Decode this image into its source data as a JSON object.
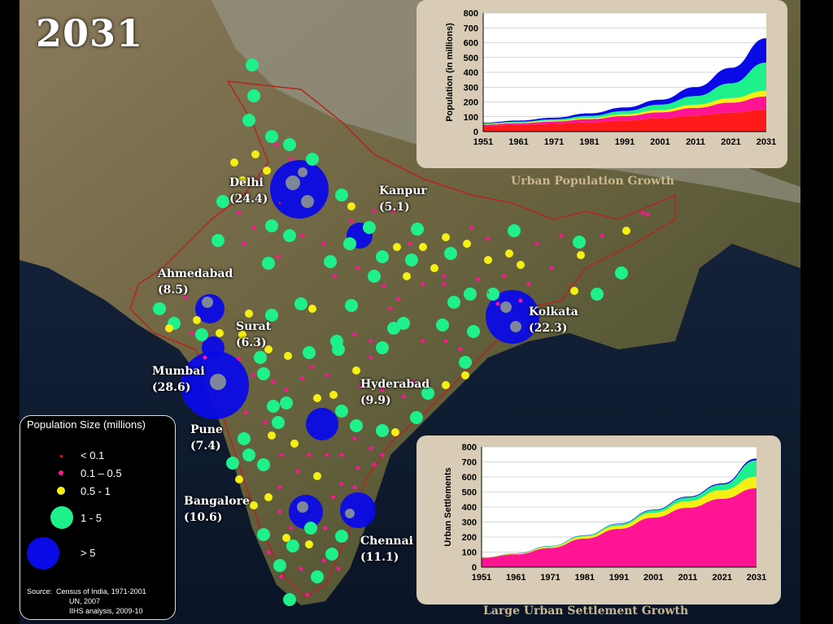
{
  "year": "2031",
  "colors": {
    "blue": "#0a0ae6",
    "green": "#1ef08c",
    "yellow": "#f5f014",
    "pink": "#ff1493",
    "red": "#ff1a1a",
    "border": "#b3261e"
  },
  "cities": [
    {
      "id": "delhi",
      "name": "Delhi",
      "pop": "(24.4)"
    },
    {
      "id": "kanpur",
      "name": "Kanpur",
      "pop": "(5.1)"
    },
    {
      "id": "ahmedabad",
      "name": "Ahmedabad",
      "pop": "(8.5)"
    },
    {
      "id": "surat",
      "name": "Surat",
      "pop": "(6.3)"
    },
    {
      "id": "kolkata",
      "name": "Kolkata",
      "pop": "(22.3)"
    },
    {
      "id": "mumbai",
      "name": "Mumbai",
      "pop": "(28.6)"
    },
    {
      "id": "hyderabad",
      "name": "Hyderabad",
      "pop": "(9.9)"
    },
    {
      "id": "pune",
      "name": "Pune",
      "pop": "(7.4)"
    },
    {
      "id": "bangalore",
      "name": "Bangalore",
      "pop": "(10.6)"
    },
    {
      "id": "chennai",
      "name": "Chennai",
      "pop": "(11.1)"
    }
  ],
  "legend": {
    "title": "Population Size (millions)",
    "items": [
      {
        "label": "< 0.1",
        "color": "#ff1a1a"
      },
      {
        "label": "0.1 – 0.5",
        "color": "#ff1493"
      },
      {
        "label": "0.5 - 1",
        "color": "#f5f014"
      },
      {
        "label": "1 - 5",
        "color": "#1ef08c"
      },
      {
        "label": "> 5",
        "color": "#0a0ae6"
      }
    ],
    "source_label": "Source:",
    "sources": [
      "Census of India, 1971-2001",
      "UN, 2007",
      "IIHS analysis, 2009-10"
    ]
  },
  "chart_data": [
    {
      "type": "area",
      "title": "Urban Population Growth",
      "ylabel": "Population (in millions)",
      "xlabel": "",
      "x": [
        1951,
        1961,
        1971,
        1981,
        1991,
        2001,
        2011,
        2021,
        2031
      ],
      "ylim": [
        0,
        800
      ],
      "yticks": [
        0,
        100,
        200,
        300,
        400,
        500,
        600,
        700,
        800
      ],
      "stacked": true,
      "series": [
        {
          "color": "#ff1a1a",
          "values": [
            38,
            45,
            52,
            62,
            75,
            90,
            108,
            128,
            150
          ]
        },
        {
          "color": "#ff1493",
          "values": [
            10,
            12,
            16,
            22,
            30,
            40,
            52,
            68,
            88
          ]
        },
        {
          "color": "#f5f014",
          "values": [
            3,
            4,
            6,
            8,
            12,
            16,
            22,
            30,
            38
          ]
        },
        {
          "color": "#1ef08c",
          "values": [
            5,
            6,
            9,
            14,
            22,
            36,
            58,
            100,
            190
          ]
        },
        {
          "color": "#0a0ae6",
          "values": [
            5,
            8,
            11,
            17,
            24,
            33,
            60,
            104,
            164
          ]
        }
      ]
    },
    {
      "type": "area",
      "title": "Large Urban Settlement Growth",
      "ylabel": "Urban Settlements",
      "xlabel": "",
      "x": [
        1951,
        1961,
        1971,
        1981,
        1991,
        2001,
        2011,
        2021,
        2031
      ],
      "ylim": [
        0,
        800
      ],
      "yticks": [
        0,
        100,
        200,
        300,
        400,
        500,
        600,
        700,
        800
      ],
      "stacked": true,
      "series": [
        {
          "color": "#ff1493",
          "values": [
            62,
            85,
            128,
            190,
            255,
            330,
            395,
            455,
            525
          ]
        },
        {
          "color": "#f5f014",
          "values": [
            2,
            4,
            8,
            14,
            22,
            32,
            44,
            58,
            78
          ]
        },
        {
          "color": "#1ef08c",
          "values": [
            1,
            2,
            4,
            6,
            10,
            16,
            24,
            36,
            108
          ]
        },
        {
          "color": "#0a0ae6",
          "values": [
            0,
            1,
            1,
            2,
            3,
            4,
            6,
            8,
            12
          ]
        }
      ]
    }
  ]
}
